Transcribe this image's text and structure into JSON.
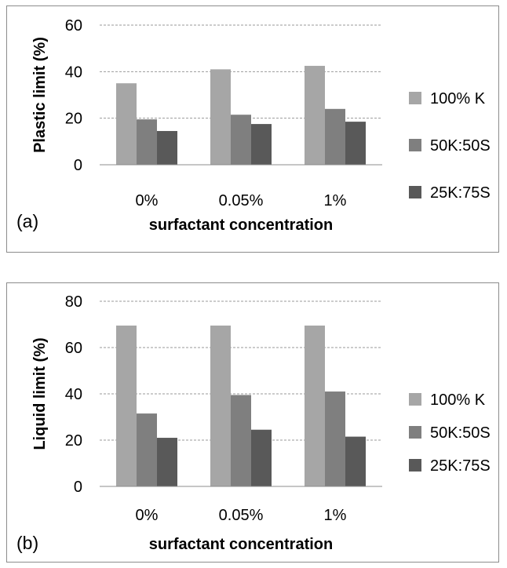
{
  "chart_data": [
    {
      "type": "bar",
      "panel_label": "(a)",
      "categories": [
        "0%",
        "0.05%",
        "1%"
      ],
      "xlabel": "surfactant concentration",
      "ylabel": "Plastic limit (%)",
      "ylim": [
        0,
        60
      ],
      "yticks": [
        "0",
        "20",
        "40",
        "60"
      ],
      "grid": true,
      "legend_position": "right",
      "series": [
        {
          "name": "100% K",
          "color": "#a6a6a6",
          "values": [
            35,
            41,
            42.5
          ]
        },
        {
          "name": "50K:50S",
          "color": "#7f7f7f",
          "values": [
            19.5,
            21.5,
            24
          ]
        },
        {
          "name": "25K:75S",
          "color": "#595959",
          "values": [
            14.5,
            17.5,
            18.5
          ]
        }
      ]
    },
    {
      "type": "bar",
      "panel_label": "(b)",
      "categories": [
        "0%",
        "0.05%",
        "1%"
      ],
      "xlabel": "surfactant concentration",
      "ylabel": "Liquid limit (%)",
      "ylim": [
        0,
        80
      ],
      "yticks": [
        "0",
        "20",
        "40",
        "60",
        "80"
      ],
      "grid": true,
      "legend_position": "right",
      "series": [
        {
          "name": "100% K",
          "color": "#a6a6a6",
          "values": [
            69.5,
            69.5,
            69.5
          ]
        },
        {
          "name": "50K:50S",
          "color": "#7f7f7f",
          "values": [
            31.5,
            39.5,
            41
          ]
        },
        {
          "name": "25K:75S",
          "color": "#595959",
          "values": [
            21,
            24.5,
            21.5
          ]
        }
      ]
    }
  ]
}
